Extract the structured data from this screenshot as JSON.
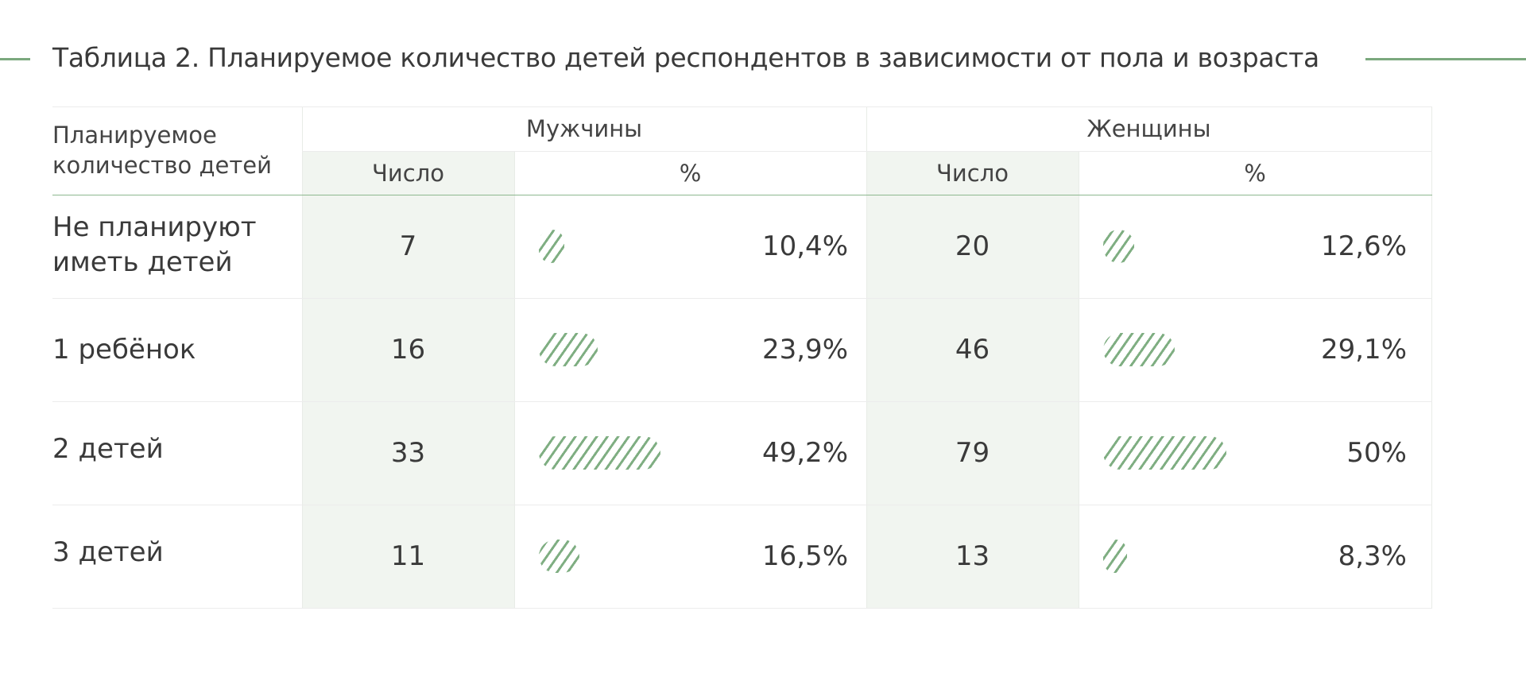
{
  "title": "Таблица 2. Планируемое количество детей респондентов в зависимости от пола и возраста",
  "colors": {
    "accent": "#7ba87e",
    "shade": "#f1f5f0",
    "text": "#3a3a3a"
  },
  "header": {
    "row_header": "Планируемое количество детей",
    "men": "Мужчины",
    "women": "Женщины",
    "count_label": "Число",
    "percent_label": "%"
  },
  "rows": [
    {
      "label": "Не планируют иметь детей",
      "men_count": "7",
      "men_pct": "10,4%",
      "women_count": "20",
      "women_pct": "12,6%"
    },
    {
      "label": "1 ребёнок",
      "men_count": "16",
      "men_pct": "23,9%",
      "women_count": "46",
      "women_pct": "29,1%"
    },
    {
      "label": "2 детей",
      "men_count": "33",
      "men_pct": "49,2%",
      "women_count": "79",
      "women_pct": "50%"
    },
    {
      "label": "3 детей",
      "men_count": "11",
      "men_pct": "16,5%",
      "women_count": "13",
      "women_pct": "8,3%"
    }
  ],
  "chart_data": {
    "type": "table",
    "title": "Таблица 2. Планируемое количество детей респондентов в зависимости от пола и возраста",
    "columns": [
      "Планируемое количество детей",
      "Мужчины: Число",
      "Мужчины: %",
      "Женщины: Число",
      "Женщины: %"
    ],
    "categories": [
      "Не планируют иметь детей",
      "1 ребёнок",
      "2 детей",
      "3 детей"
    ],
    "series": [
      {
        "name": "Мужчины",
        "counts": [
          7,
          16,
          33,
          11
        ],
        "values": [
          10.4,
          23.9,
          49.2,
          16.5
        ]
      },
      {
        "name": "Женщины",
        "counts": [
          20,
          46,
          79,
          13
        ],
        "values": [
          12.6,
          29.1,
          50,
          8.3
        ]
      }
    ]
  }
}
